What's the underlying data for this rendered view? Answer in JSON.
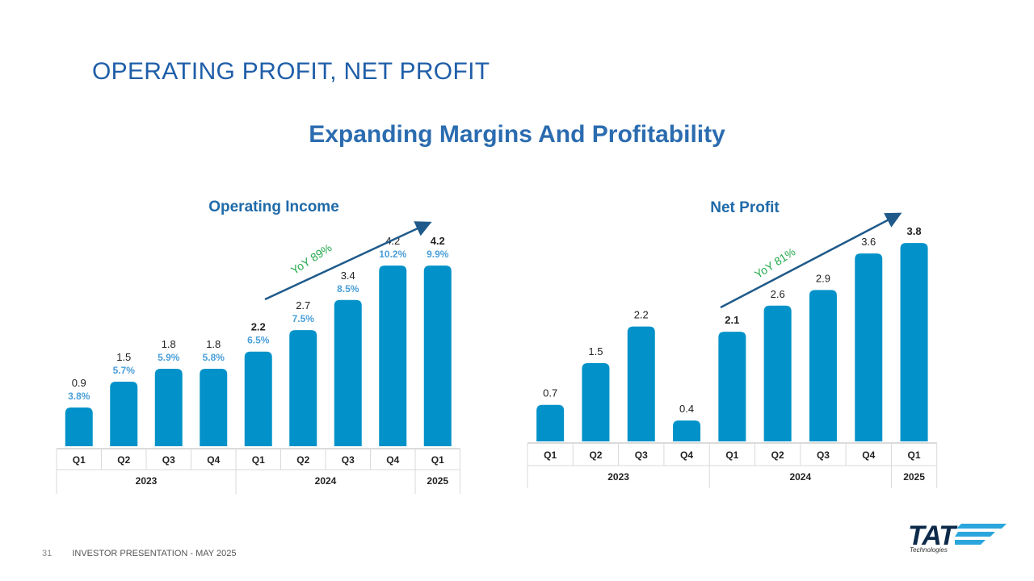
{
  "slide": {
    "title": "OPERATING PROFIT, NET PROFIT",
    "subtitle": "Expanding Margins And Profitability",
    "footer_page": "31",
    "footer_text": "INVESTOR PRESENTATION  -  MAY 2025",
    "logo_text": "TAT",
    "logo_sub": "Technologies"
  },
  "colors": {
    "bar": "#0292c9",
    "margin": "#4a9fd8",
    "trend": "#1f5a8a",
    "yoy": "#22a84a",
    "title": "#1f6aa8"
  },
  "chart_data": [
    {
      "type": "bar",
      "title": "Operating Income",
      "categories": [
        "Q1",
        "Q2",
        "Q3",
        "Q4",
        "Q1",
        "Q2",
        "Q3",
        "Q4",
        "Q1"
      ],
      "groups": [
        {
          "label": "2023",
          "count": 4
        },
        {
          "label": "2024",
          "count": 4
        },
        {
          "label": "2025",
          "count": 1
        }
      ],
      "values": [
        0.9,
        1.5,
        1.8,
        1.8,
        2.2,
        2.7,
        3.4,
        4.2,
        4.2
      ],
      "value_labels": [
        "0.9",
        "1.5",
        "1.8",
        "1.8",
        "2.2",
        "2.7",
        "3.4",
        "4.2",
        "4.2"
      ],
      "bold_value_indices": [
        4,
        8
      ],
      "margins": [
        "3.8%",
        "5.7%",
        "5.9%",
        "5.8%",
        "6.5%",
        "7.5%",
        "8.5%",
        "10.2%",
        "9.9%"
      ],
      "annotation": "YoY 89%"
    },
    {
      "type": "bar",
      "title": "Net Profit",
      "categories": [
        "Q1",
        "Q2",
        "Q3",
        "Q4",
        "Q1",
        "Q2",
        "Q3",
        "Q4",
        "Q1"
      ],
      "groups": [
        {
          "label": "2023",
          "count": 4
        },
        {
          "label": "2024",
          "count": 4
        },
        {
          "label": "2025",
          "count": 1
        }
      ],
      "values": [
        0.7,
        1.5,
        2.2,
        0.4,
        2.1,
        2.6,
        2.9,
        3.6,
        3.8
      ],
      "value_labels": [
        "0.7",
        "1.5",
        "2.2",
        "0.4",
        "2.1",
        "2.6",
        "2.9",
        "3.6",
        "3.8"
      ],
      "bold_value_indices": [
        4,
        8
      ],
      "annotation": "YoY 81%"
    }
  ]
}
